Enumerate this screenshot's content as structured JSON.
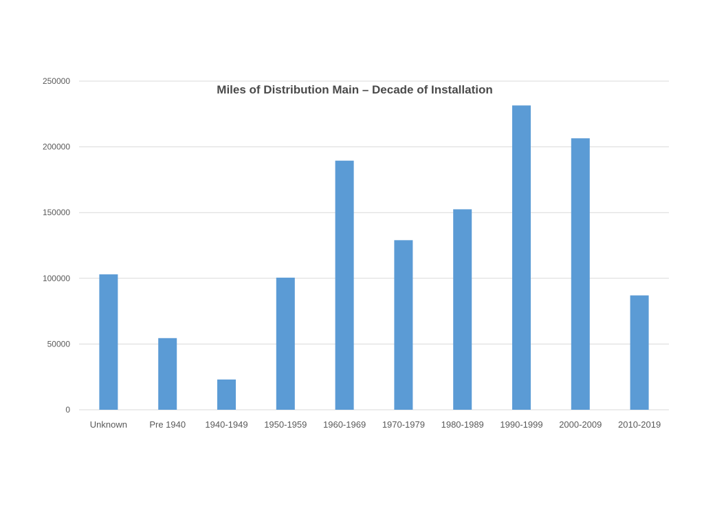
{
  "chart_data": {
    "type": "bar",
    "title": "Miles of Distribution Main – Decade of Installation",
    "xlabel": "",
    "ylabel": "",
    "categories": [
      "Unknown",
      "Pre 1940",
      "1940-1949",
      "1950-1959",
      "1960-1969",
      "1970-1979",
      "1980-1989",
      "1990-1999",
      "2000-2009",
      "2010-2019"
    ],
    "values": [
      103000,
      54500,
      23000,
      100500,
      189500,
      129000,
      152500,
      231500,
      206500,
      87000
    ],
    "ylim": [
      0,
      250000
    ],
    "yticks": [
      "0",
      "50000",
      "100000",
      "150000",
      "200000",
      "250000"
    ],
    "ytick_values": [
      0,
      50000,
      100000,
      150000,
      200000,
      250000
    ],
    "grid": true,
    "legend": "none",
    "bar_color": "#5b9bd5"
  }
}
